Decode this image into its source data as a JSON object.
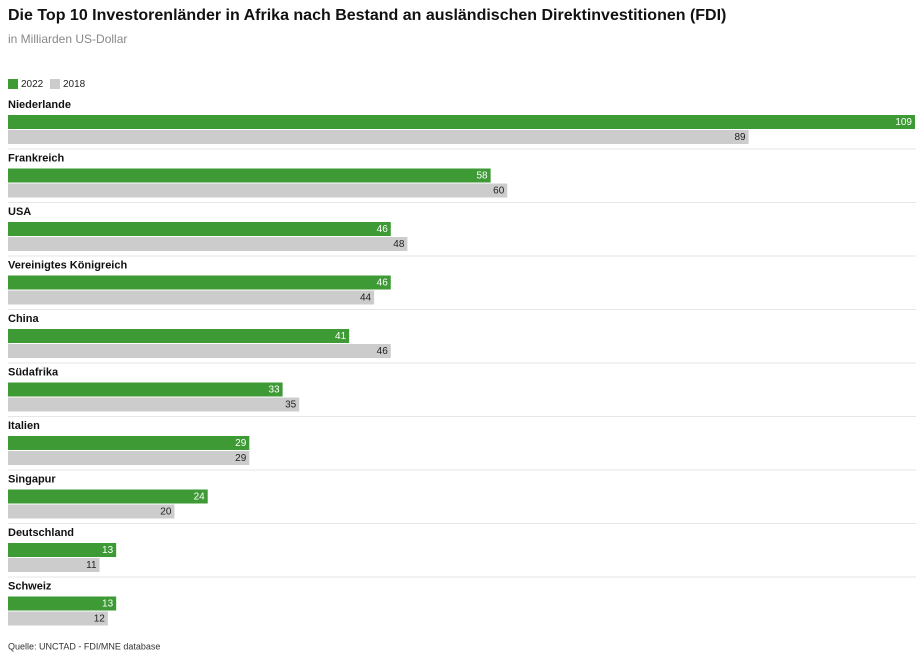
{
  "chart_data": {
    "type": "bar",
    "orientation": "horizontal",
    "title": "Die Top 10 Investorenländer in Afrika nach Bestand an ausländischen Direktinvestitionen (FDI)",
    "subtitle": "in Milliarden US-Dollar",
    "source": "Quelle: UNCTAD - FDI/MNE database",
    "categories": [
      "Niederlande",
      "Frankreich",
      "USA",
      "Vereinigtes Königreich",
      "China",
      "Südafrika",
      "Italien",
      "Singapur",
      "Deutschland",
      "Schweiz"
    ],
    "series": [
      {
        "name": "2022",
        "color": "#3d9a35",
        "values": [
          109,
          58,
          46,
          46,
          41,
          33,
          29,
          24,
          13,
          13
        ]
      },
      {
        "name": "2018",
        "color": "#cccccc",
        "values": [
          89,
          60,
          48,
          44,
          46,
          35,
          29,
          20,
          11,
          12
        ]
      }
    ],
    "legend": "top-left"
  }
}
